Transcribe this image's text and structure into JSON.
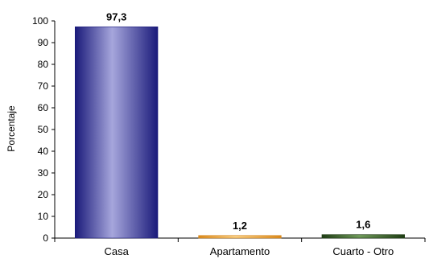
{
  "chart_data": {
    "type": "bar",
    "categories": [
      "Casa",
      "Apartamento",
      "Cuarto - Otro"
    ],
    "values": [
      97.3,
      1.2,
      1.6
    ],
    "data_labels": [
      "97,3",
      "1,2",
      "1,6"
    ],
    "title": "",
    "xlabel": "",
    "ylabel": "Porcentaje",
    "ylim": [
      0,
      100
    ],
    "yticks": [
      0,
      10,
      20,
      30,
      40,
      50,
      60,
      70,
      80,
      90,
      100
    ],
    "grid": false,
    "bar_colors": [
      {
        "dark": "#1a1a7a",
        "light": "#a6a6dc"
      },
      {
        "dark": "#d9881a",
        "light": "#f7cf86"
      },
      {
        "dark": "#1f3d14",
        "light": "#6f9a5a"
      }
    ]
  }
}
